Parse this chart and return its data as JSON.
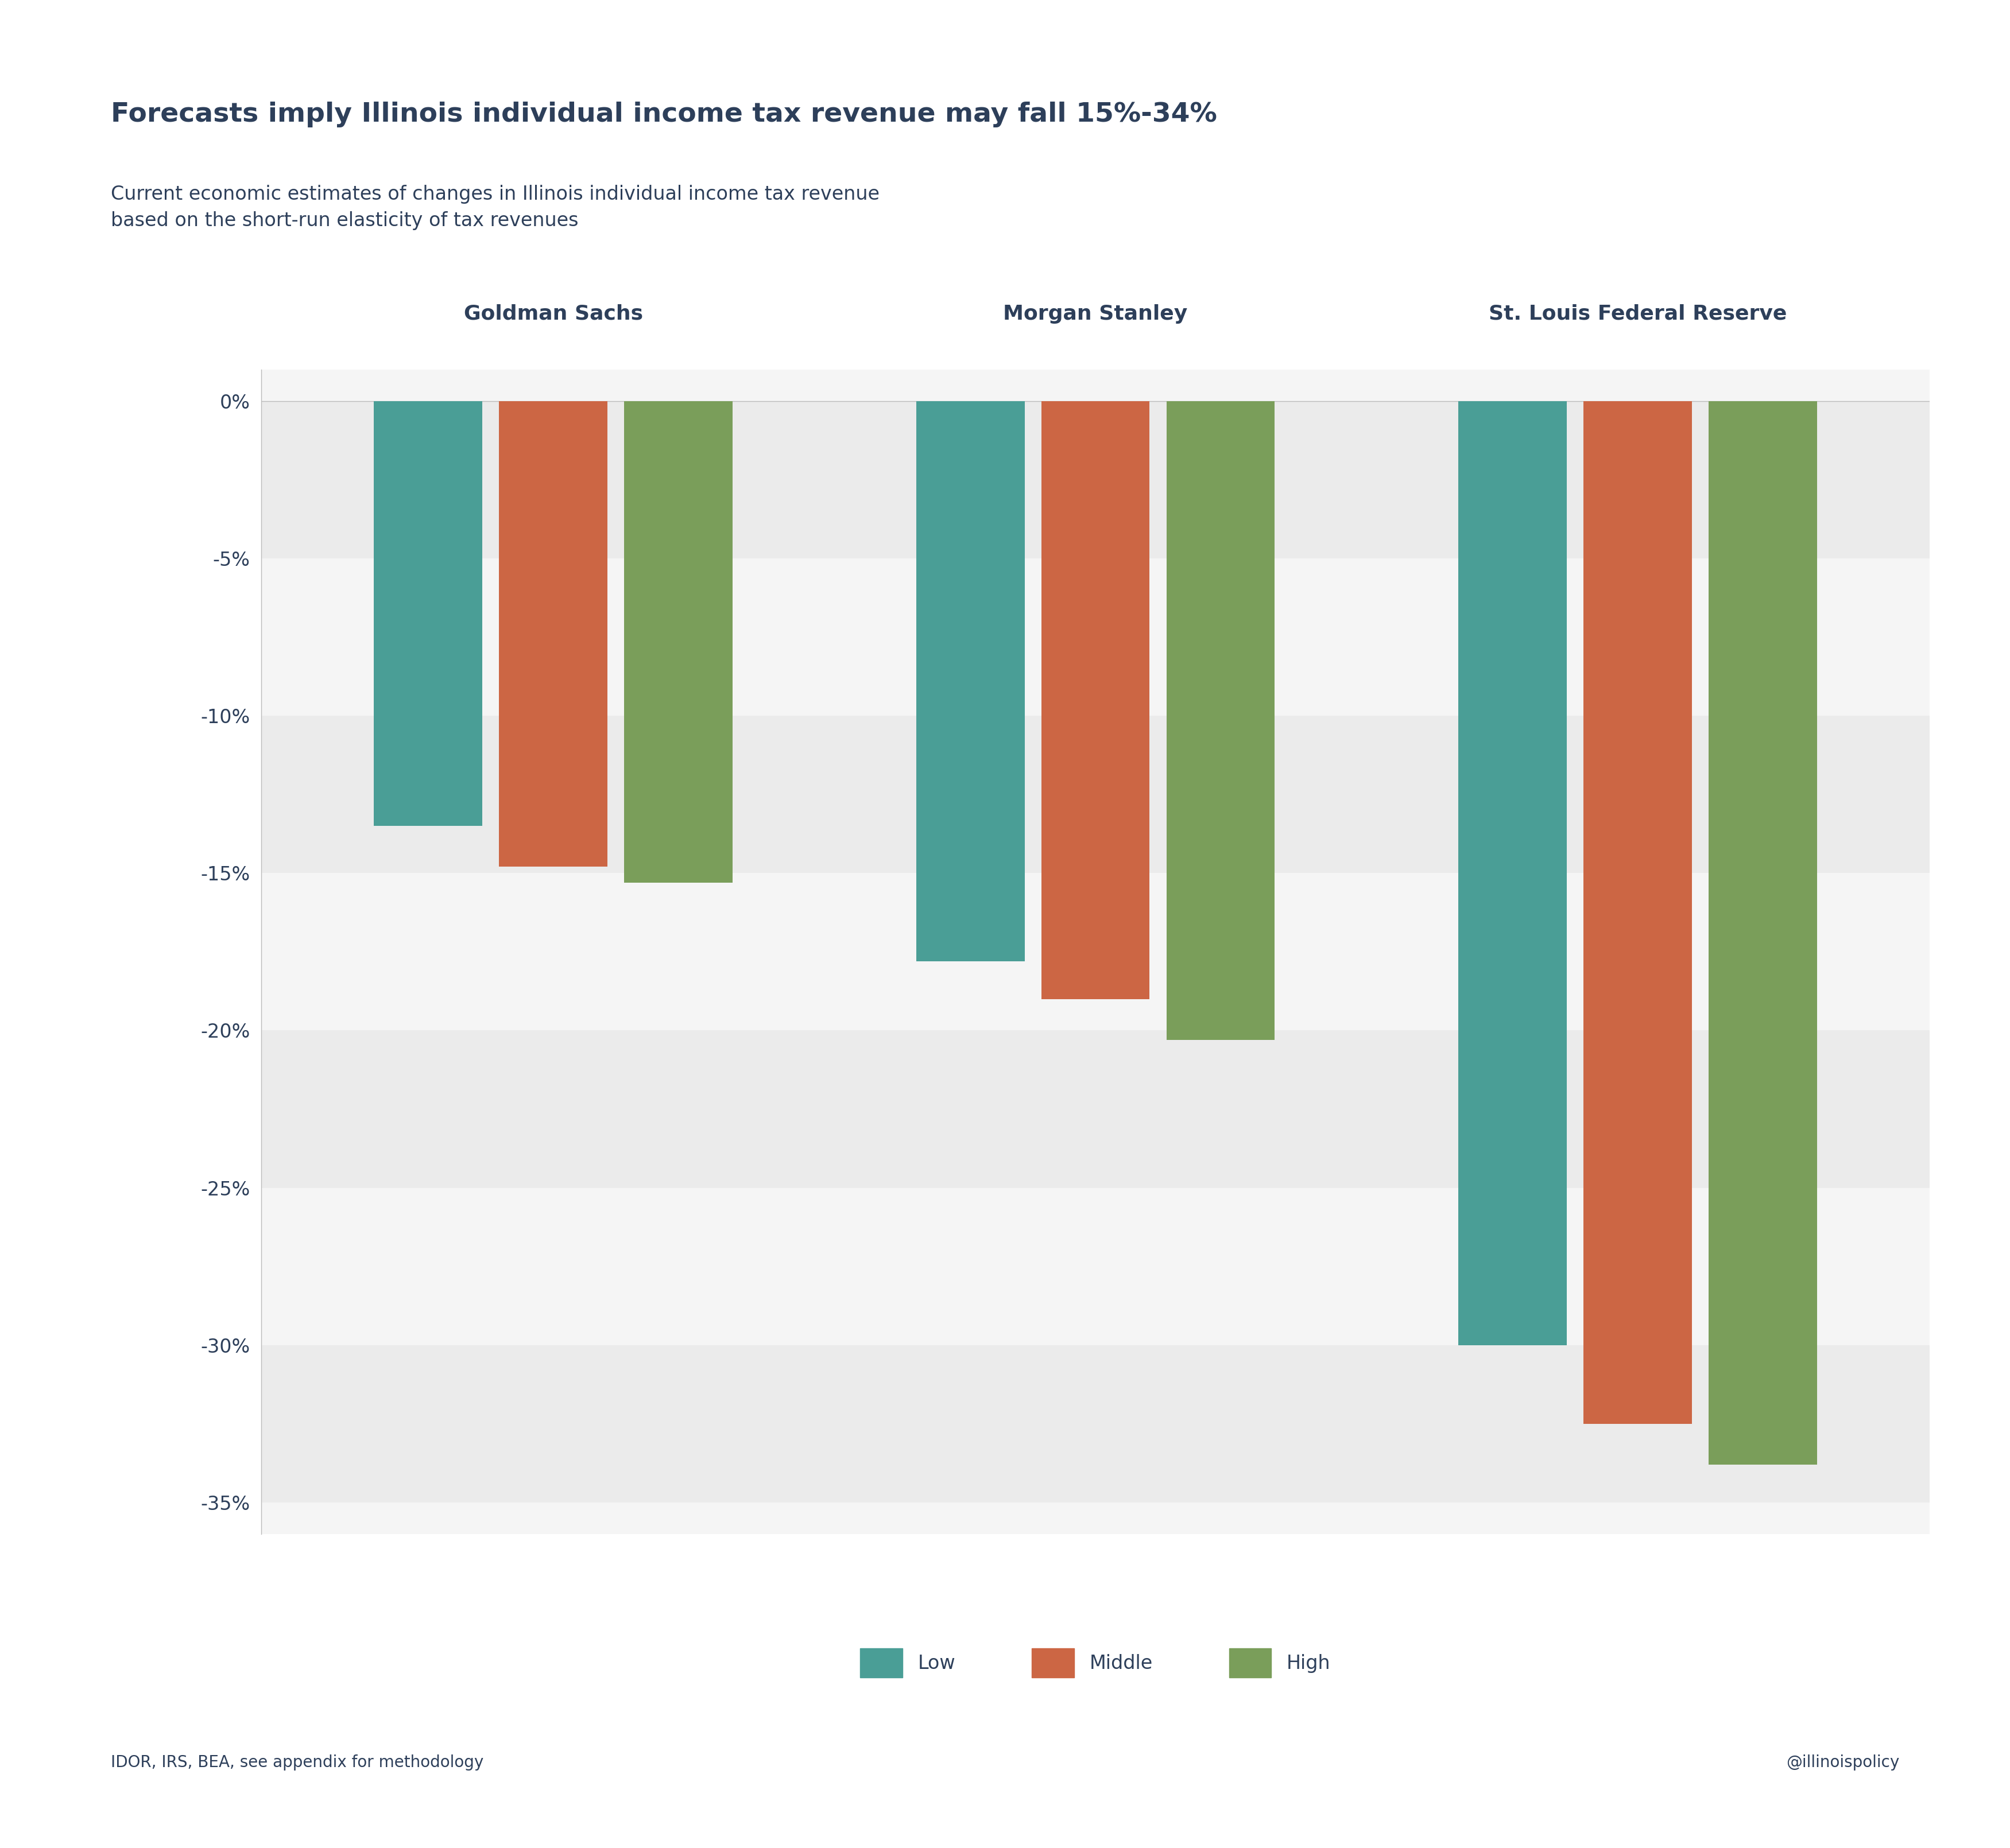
{
  "title": "Forecasts imply Illinois individual income tax revenue may fall 15%-34%",
  "subtitle": "Current economic estimates of changes in Illinois individual income tax revenue\nbased on the short-run elasticity of tax revenues",
  "groups": [
    "Goldman Sachs",
    "Morgan Stanley",
    "St. Louis Federal Reserve"
  ],
  "series": [
    "Low",
    "Middle",
    "High"
  ],
  "values": [
    [
      -13.5,
      -14.8,
      -15.3
    ],
    [
      -17.8,
      -19.0,
      -20.3
    ],
    [
      -30.0,
      -32.5,
      -33.8
    ]
  ],
  "bar_colors": [
    "#4a9e96",
    "#cc6644",
    "#7a9e5a"
  ],
  "ylim": [
    -36,
    1
  ],
  "yticks": [
    0,
    -5,
    -10,
    -15,
    -20,
    -25,
    -30,
    -35
  ],
  "ytick_labels": [
    "0%",
    "-5%",
    "-10%",
    "-15%",
    "-20%",
    "-25%",
    "-30%",
    "-35%"
  ],
  "background_color": "#ffffff",
  "band_colors": [
    "#ebebeb",
    "#f5f5f5"
  ],
  "title_color": "#2d3f5a",
  "subtitle_color": "#2d3f5a",
  "tick_color": "#2d3f5a",
  "group_label_color": "#2d3f5a",
  "legend_labels": [
    "Low",
    "Middle",
    "High"
  ],
  "footer_left": "IDOR, IRS, BEA, see appendix for methodology",
  "footer_right": "@illinoispolicy",
  "title_fontsize": 34,
  "subtitle_fontsize": 24,
  "group_label_fontsize": 26,
  "tick_fontsize": 24,
  "legend_fontsize": 24,
  "footer_fontsize": 20,
  "bar_width": 0.13,
  "bar_gap": 0.02,
  "group_positions": [
    0.35,
    1.0,
    1.65
  ]
}
